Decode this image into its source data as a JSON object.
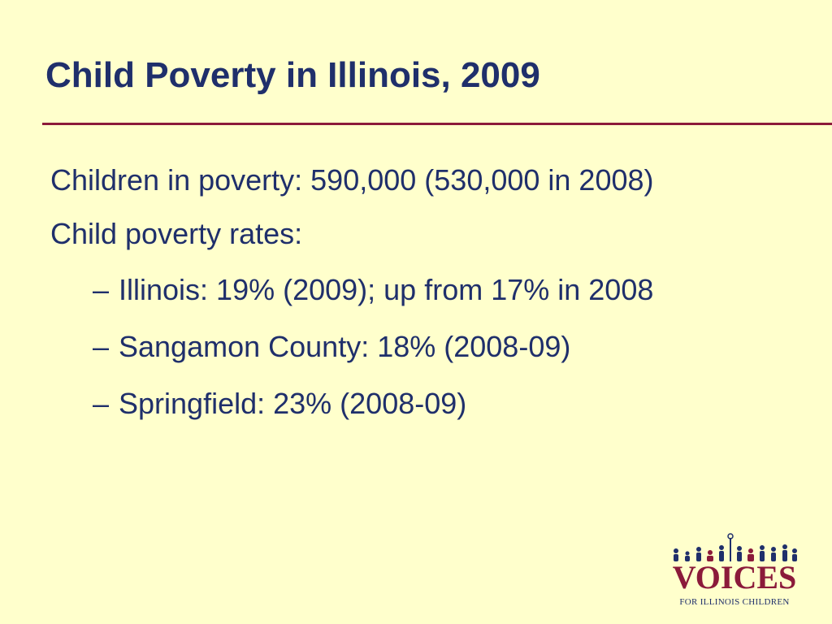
{
  "slide": {
    "title": "Child Poverty in Illinois, 2009",
    "bullets": [
      {
        "text": "Children in poverty:  590,000 (530,000 in 2008)"
      },
      {
        "text": "Child poverty rates:"
      }
    ],
    "sub_bullets": [
      {
        "dash": "–",
        "text": "Illinois:  19% (2009); up from 17% in 2008"
      },
      {
        "dash": "–",
        "text": "Sangamon County:  18% (2008-09)"
      },
      {
        "dash": "–",
        "text": "Springfield:  23% (2008-09)"
      }
    ]
  },
  "logo": {
    "name": "VOICES",
    "tagline": "For Illinois Children",
    "icon": "children-figures-icon"
  },
  "colors": {
    "background": "#FFFFCC",
    "title": "#1F2F6B",
    "text": "#1F2F6B",
    "rule": "#8B1A3A",
    "logo_wordmark": "#8B1A3A"
  }
}
